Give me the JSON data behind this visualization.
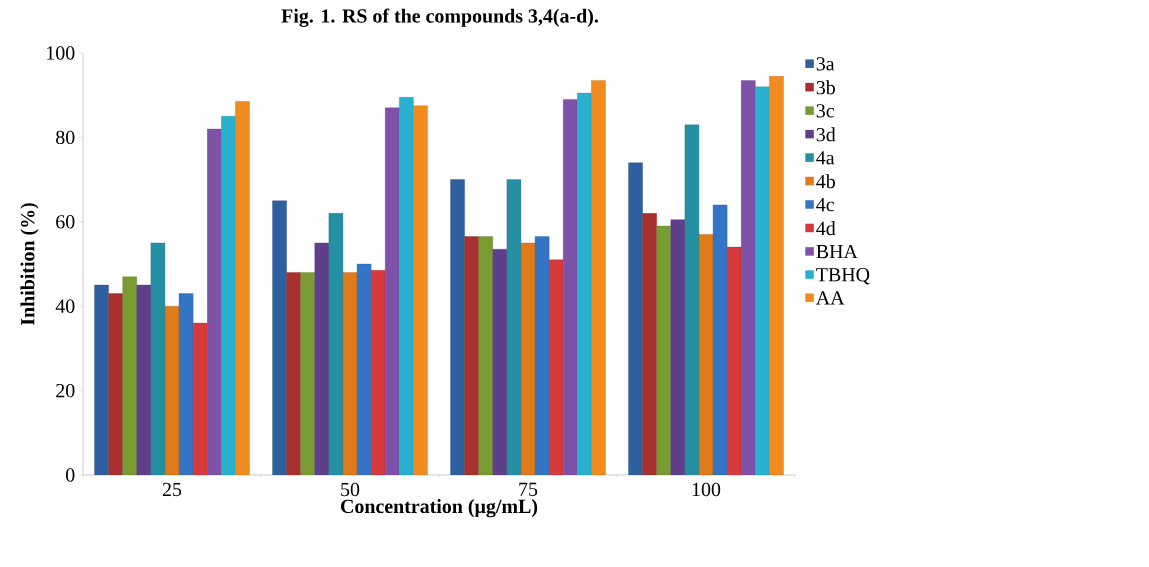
{
  "chart_data": {
    "type": "bar",
    "title": "Fig. 1.  RS of the compounds 3,4(a-d).",
    "xlabel": "Concentration (µg/mL)",
    "ylabel": "Inhibition (%)",
    "categories": [
      "25",
      "50",
      "75",
      "100"
    ],
    "series": [
      {
        "name": "3a",
        "color": "#2e5f9e",
        "values": [
          45,
          65,
          70,
          74
        ]
      },
      {
        "name": "3b",
        "color": "#a8302e",
        "values": [
          43,
          48,
          56.5,
          62
        ]
      },
      {
        "name": "3c",
        "color": "#7a9a34",
        "values": [
          47,
          48,
          56.5,
          59
        ]
      },
      {
        "name": "3d",
        "color": "#5f3f8c",
        "values": [
          45,
          55,
          53.5,
          60.5
        ]
      },
      {
        "name": "4a",
        "color": "#2590a4",
        "values": [
          55,
          62,
          70,
          83
        ]
      },
      {
        "name": "4b",
        "color": "#e07b1c",
        "values": [
          40,
          48,
          55,
          57
        ]
      },
      {
        "name": "4c",
        "color": "#3575c6",
        "values": [
          43,
          50,
          56.5,
          64
        ]
      },
      {
        "name": "4d",
        "color": "#d63a3a",
        "values": [
          36,
          48.5,
          51,
          54
        ]
      },
      {
        "name": "BHA",
        "color": "#7d52a8",
        "values": [
          82,
          87,
          89,
          93.5
        ]
      },
      {
        "name": "TBHQ",
        "color": "#2ab0cf",
        "values": [
          85,
          89.5,
          90.5,
          92
        ]
      },
      {
        "name": "AA",
        "color": "#f28b1e",
        "values": [
          88.5,
          87.5,
          93.5,
          94.5
        ]
      }
    ],
    "ylim": [
      0,
      100
    ],
    "yticks": [
      0,
      20,
      40,
      60,
      80,
      100
    ],
    "grid": false,
    "legend": "right"
  }
}
